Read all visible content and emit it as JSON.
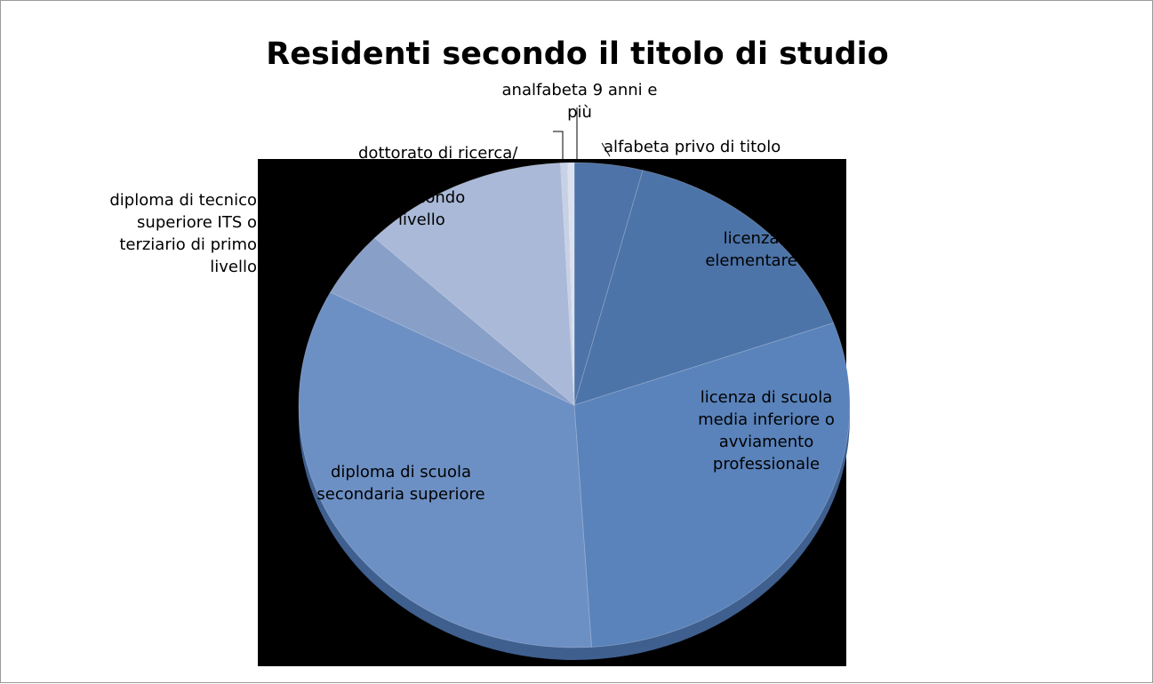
{
  "chart_data": {
    "type": "pie",
    "title": "Residenti secondo il titolo di studio",
    "labels": [
      "alfabeta privo di titolo",
      "licenza elementare",
      "licenza di scuola media inferiore o avviamento professionale",
      "diploma di scuola secondaria superiore",
      "diploma di tecnico superiore ITS o titolo terziario di primo livello",
      "titolo terziario di secondo livello",
      "dottorato di ricerca/",
      "analfabeta 9 anni e più"
    ],
    "values": [
      4.0,
      15.5,
      29.5,
      33.7,
      4.4,
      12.1,
      0.4,
      0.4
    ],
    "colors": [
      "#4e73a8",
      "#4d74a9",
      "#5a83bb",
      "#6d90c4",
      "#889fc8",
      "#aab9d8",
      "#c7d0e5",
      "#dbe1ee"
    ],
    "label_text": {
      "alfabeta": "alfabeta privo di titolo",
      "elementare": "licenza \nelementare",
      "media": "licenza di scuola\nmedia inferiore o\navviamento\nprofessionale",
      "diploma": "diploma di scuola\nsecondaria superiore",
      "its": "diploma di tecnico\nsuperiore ITS o\nterziario di primo\nlivello",
      "secondo": "secondo\nlivello",
      "dottorato": "dottorato di ricerca/",
      "analfabeta": "analfabeta 9 anni e\npiù"
    },
    "legend": "none"
  }
}
